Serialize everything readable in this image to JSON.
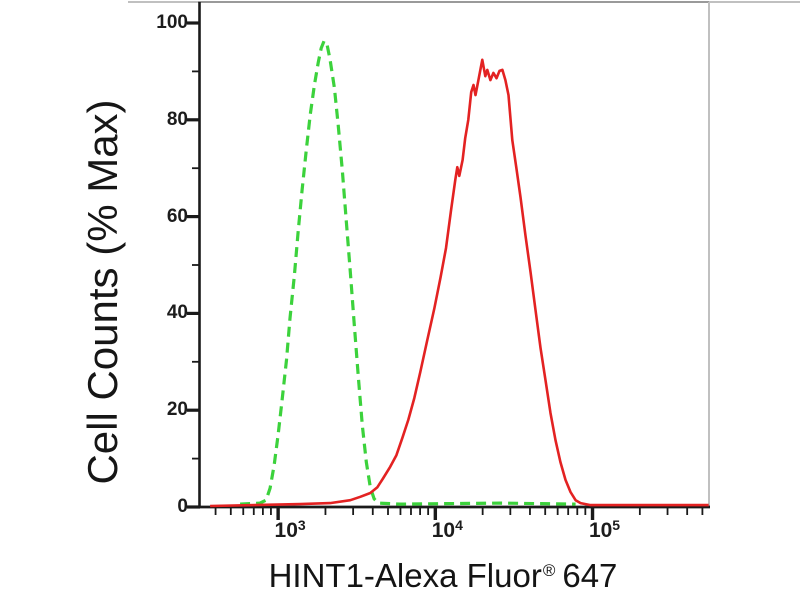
{
  "figure": {
    "background": "#ffffff",
    "title": {
      "main": "HINT1-Alexa Fluor",
      "registered": "®",
      "suffix": "647"
    },
    "y_axis_label": "Cell Counts (% Max)"
  },
  "colors": {
    "green_dashed_curve": "#3cd23c",
    "red_solid_curve": "#e32222",
    "axis": "#1a1a1a",
    "photo_edge": "#c0c0c0",
    "plot_top_edge": "#9a9a9a"
  },
  "chart_data": {
    "type": "line",
    "subtype": "flow-cytometry-histogram-overlay",
    "title": "",
    "xlabel": "HINT1-Alexa Fluor® 647",
    "ylabel": "Cell Counts (% Max)",
    "x_scale": "log10",
    "xlim": [
      320,
      550000
    ],
    "ylim": [
      0,
      105
    ],
    "grid": false,
    "legend": "none",
    "x_axis": {
      "major_ticks": [
        {
          "value": 1000,
          "label_base": "10",
          "label_exponent": "3"
        },
        {
          "value": 10000,
          "label_base": "10",
          "label_exponent": "4"
        },
        {
          "value": 100000,
          "label_base": "10",
          "label_exponent": "5"
        }
      ],
      "minor_tick_values": [
        400,
        500,
        600,
        700,
        800,
        900,
        2000,
        3000,
        4000,
        5000,
        6000,
        7000,
        8000,
        9000,
        20000,
        30000,
        40000,
        50000,
        60000,
        70000,
        80000,
        90000,
        200000,
        300000,
        400000,
        500000
      ]
    },
    "y_axis": {
      "major_ticks": [
        {
          "value": 100,
          "label": "100"
        },
        {
          "value": 80,
          "label": "80"
        },
        {
          "value": 60,
          "label": "60"
        },
        {
          "value": 40,
          "label": "40"
        },
        {
          "value": 20,
          "label": "20"
        },
        {
          "value": 0,
          "label": "0"
        }
      ],
      "minor_tick_values": [
        10,
        30,
        50,
        70,
        90
      ]
    },
    "series": [
      {
        "name": "green-dashed-control",
        "color": "#3cd23c",
        "line_style": "dashed",
        "peak": {
          "x": 1960,
          "y_pct": 96.3
        },
        "points": [
          [
            573,
            0.6
          ],
          [
            767,
            0.8
          ],
          [
            839,
            1.4
          ],
          [
            889,
            3.9
          ],
          [
            944,
            8.7
          ],
          [
            1000,
            14.9
          ],
          [
            1060,
            22.1
          ],
          [
            1130,
            30.4
          ],
          [
            1190,
            39.0
          ],
          [
            1270,
            47.9
          ],
          [
            1340,
            56.8
          ],
          [
            1420,
            65.5
          ],
          [
            1510,
            73.8
          ],
          [
            1600,
            81.0
          ],
          [
            1700,
            87.2
          ],
          [
            1800,
            91.9
          ],
          [
            1880,
            94.8
          ],
          [
            1960,
            96.3
          ],
          [
            2050,
            95.5
          ],
          [
            2140,
            92.4
          ],
          [
            2280,
            86.6
          ],
          [
            2410,
            78.9
          ],
          [
            2560,
            69.6
          ],
          [
            2710,
            59.3
          ],
          [
            2880,
            48.6
          ],
          [
            3050,
            37.6
          ],
          [
            3240,
            26.7
          ],
          [
            3430,
            16.9
          ],
          [
            3640,
            9.3
          ],
          [
            3860,
            4.1
          ],
          [
            4080,
            1.7
          ],
          [
            4340,
            0.8
          ],
          [
            5980,
            0.6
          ],
          [
            25900,
            0.8
          ],
          [
            78000,
            0.6
          ]
        ]
      },
      {
        "name": "red-solid-stained",
        "color": "#e32222",
        "line_style": "solid",
        "peak": {
          "x": 19900,
          "y_pct": 92.4
        },
        "points": [
          [
            369,
            0.2
          ],
          [
            1380,
            0.6
          ],
          [
            2140,
            0.8
          ],
          [
            2880,
            1.4
          ],
          [
            3330,
            2.1
          ],
          [
            3860,
            2.9
          ],
          [
            4280,
            4.1
          ],
          [
            4670,
            6.0
          ],
          [
            5160,
            8.3
          ],
          [
            5650,
            10.7
          ],
          [
            6170,
            14.3
          ],
          [
            6730,
            18.0
          ],
          [
            7350,
            22.5
          ],
          [
            8020,
            27.9
          ],
          [
            8890,
            34.5
          ],
          [
            9860,
            41.1
          ],
          [
            10800,
            47.5
          ],
          [
            11700,
            53.5
          ],
          [
            12600,
            61.4
          ],
          [
            13400,
            67.6
          ],
          [
            13800,
            70.2
          ],
          [
            14200,
            68.4
          ],
          [
            14900,
            71.7
          ],
          [
            15500,
            76.2
          ],
          [
            16200,
            80.0
          ],
          [
            16900,
            85.7
          ],
          [
            17500,
            87.2
          ],
          [
            18000,
            85.1
          ],
          [
            18800,
            88.2
          ],
          [
            19900,
            92.4
          ],
          [
            20800,
            89.0
          ],
          [
            21400,
            90.3
          ],
          [
            22400,
            88.2
          ],
          [
            23400,
            89.7
          ],
          [
            24500,
            88.6
          ],
          [
            25600,
            90.1
          ],
          [
            26700,
            90.3
          ],
          [
            27900,
            88.2
          ],
          [
            29200,
            85.1
          ],
          [
            30900,
            75.8
          ],
          [
            32800,
            70.0
          ],
          [
            34800,
            64.0
          ],
          [
            37400,
            56.2
          ],
          [
            40300,
            48.6
          ],
          [
            43400,
            40.7
          ],
          [
            46700,
            32.9
          ],
          [
            50200,
            26.2
          ],
          [
            54000,
            19.4
          ],
          [
            58100,
            13.8
          ],
          [
            62500,
            9.3
          ],
          [
            67300,
            5.6
          ],
          [
            72400,
            3.1
          ],
          [
            78000,
            1.4
          ],
          [
            84000,
            0.8
          ],
          [
            97100,
            0.4
          ],
          [
            234000,
            0.4
          ],
          [
            548000,
            0.4
          ]
        ]
      }
    ]
  }
}
